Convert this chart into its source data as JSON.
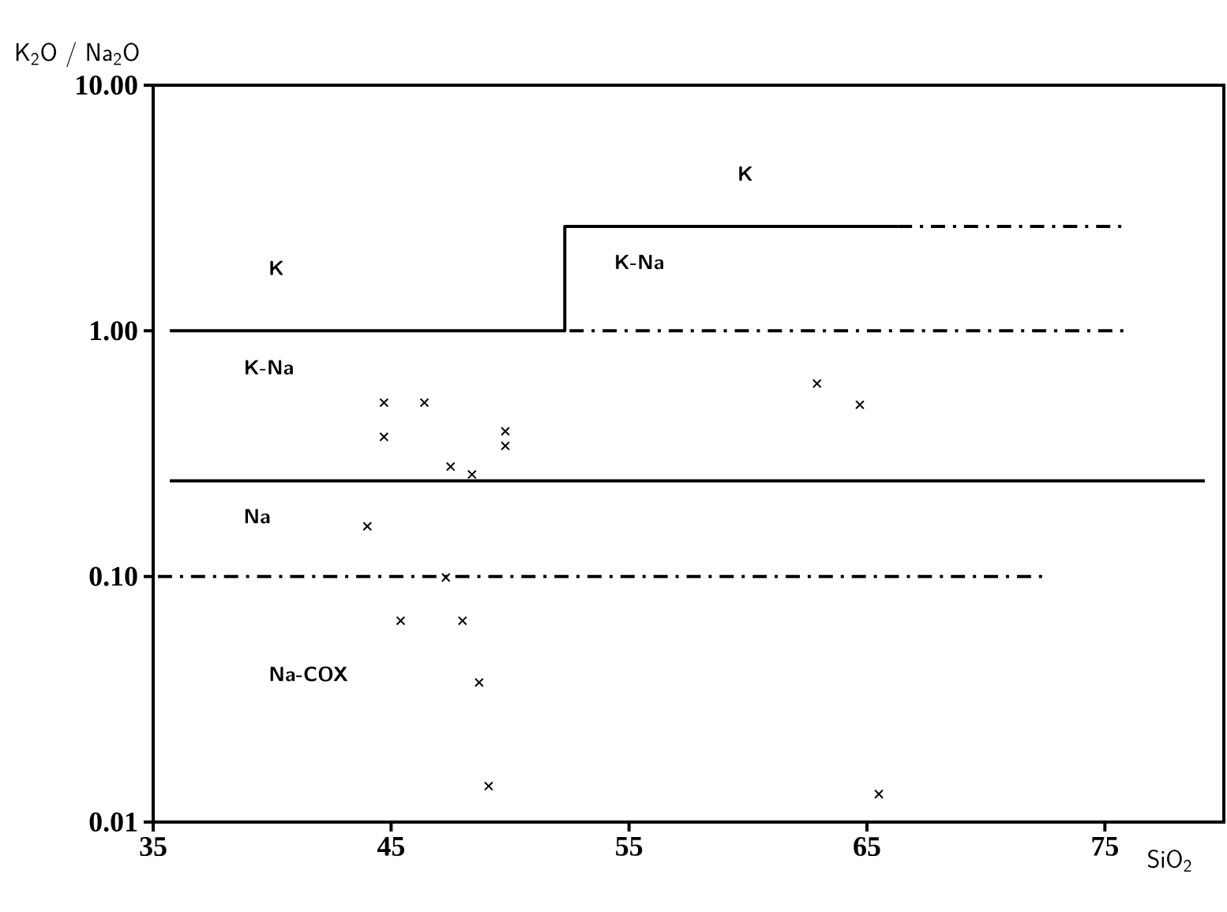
{
  "chart_data": {
    "type": "scatter",
    "xlabel": "SiO$_{2}$",
    "ylabel": "K$_{2}$O / Na$_{2}$O",
    "log": "y",
    "grid": false,
    "legend": false,
    "xlim": [
      35,
      80
    ],
    "xticks": [
      35,
      45,
      55,
      65,
      75
    ],
    "ylim": [
      0.01,
      10
    ],
    "yticks": [
      {
        "value": 10,
        "label": "10.00"
      },
      {
        "value": 1,
        "label": "1.00"
      },
      {
        "value": 0.1,
        "label": "0.10"
      },
      {
        "value": 0.01,
        "label": "0.01"
      }
    ],
    "series": [
      {
        "color": "#000000",
        "marker": "cross",
        "x": [
          44.7,
          46.4,
          44.7,
          49.8,
          49.8,
          47.5,
          48.4,
          44.0,
          47.3,
          45.4,
          48.0,
          48.7,
          49.1,
          62.9,
          64.7,
          65.5
        ],
        "values": [
          0.51,
          0.51,
          0.37,
          0.39,
          0.34,
          0.28,
          0.26,
          0.16,
          0.099,
          0.066,
          0.066,
          0.037,
          0.014,
          0.61,
          0.5,
          0.013
        ]
      },
      {
        "type": "line",
        "color": "#000000",
        "line_style": "solid",
        "x": [
          35.7,
          52.3,
          52.3,
          66.3
        ],
        "values": [
          1,
          1,
          2.66,
          2.66
        ]
      },
      {
        "type": "line",
        "color": "#000000",
        "line_style": "dashdot",
        "x": [
          66.3,
          75.8
        ],
        "values": [
          2.66,
          2.66
        ]
      },
      {
        "type": "line",
        "color": "#000000",
        "line_style": "dashdot",
        "x": [
          52.5,
          75.8
        ],
        "values": [
          1,
          1
        ]
      },
      {
        "type": "line",
        "color": "#000000",
        "line_style": "solid",
        "x": [
          35.7,
          79.2
        ],
        "values": [
          0.245,
          0.245
        ]
      },
      {
        "type": "line",
        "color": "#000000",
        "line_style": "dashdot",
        "x": [
          35.2,
          72.5
        ],
        "values": [
          0.1,
          0.1
        ]
      }
    ],
    "annotations": [
      "K",
      "K",
      "K-Na",
      "K-Na",
      "Na",
      "Na-COX"
    ]
  }
}
